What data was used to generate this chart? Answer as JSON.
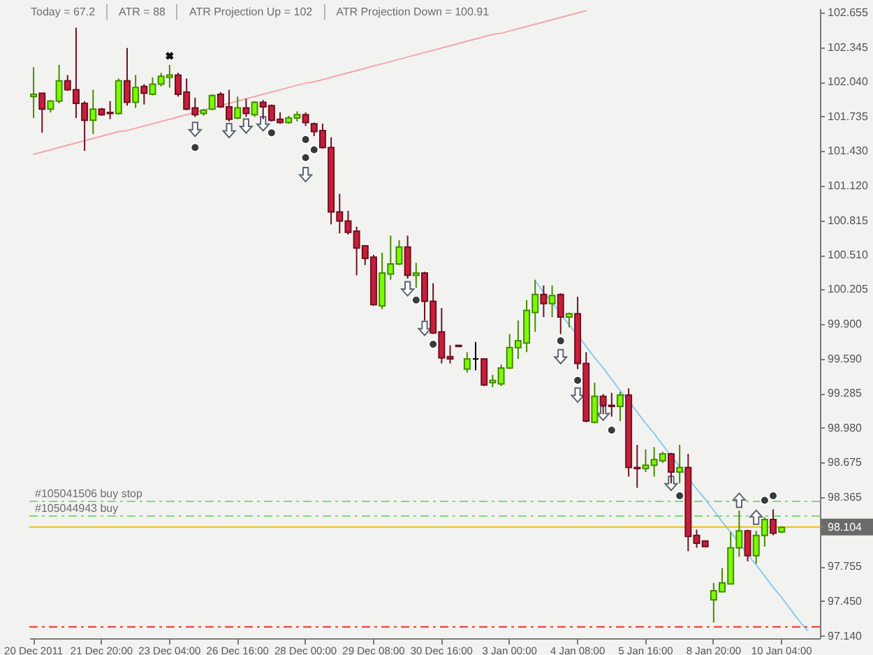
{
  "chart_data": {
    "type": "candlestick",
    "annotations": [
      "Today = 67.2",
      "ATR = 88",
      "ATR Projection Up = 102",
      "ATR Projection Down = 100.91"
    ],
    "categories": [
      "20 Dec 2011",
      null,
      null,
      null,
      null,
      null,
      null,
      null,
      "21 Dec 20:00",
      null,
      null,
      null,
      null,
      null,
      null,
      null,
      "23 Dec 04:00",
      null,
      null,
      null,
      null,
      null,
      null,
      null,
      "26 Dec 16:00",
      null,
      null,
      null,
      null,
      null,
      null,
      null,
      "28 Dec 00:00",
      null,
      null,
      null,
      null,
      null,
      null,
      null,
      "29 Dec 08:00",
      null,
      null,
      null,
      null,
      null,
      null,
      null,
      "30 Dec 16:00",
      null,
      null,
      null,
      null,
      null,
      null,
      null,
      "3 Jan 00:00",
      null,
      null,
      null,
      null,
      null,
      null,
      null,
      "4 Jan 08:00",
      null,
      null,
      null,
      null,
      null,
      null,
      null,
      "5 Jan 16:00",
      null,
      null,
      null,
      null,
      null,
      null,
      null,
      "8 Jan 20:00",
      null,
      null,
      null,
      null,
      null,
      null,
      null,
      "10 Jan 04:00",
      null,
      null,
      null,
      null
    ],
    "ohlc": [
      [
        101.91,
        102.17,
        101.72,
        101.93
      ],
      [
        101.94,
        101.94,
        101.59,
        101.8
      ],
      [
        101.8,
        101.88,
        101.77,
        101.87
      ],
      [
        101.87,
        102.19,
        101.85,
        102.05
      ],
      [
        102.05,
        102.1,
        101.96,
        101.97
      ],
      [
        101.97,
        102.52,
        101.72,
        101.85
      ],
      [
        101.85,
        101.87,
        101.43,
        101.7
      ],
      [
        101.7,
        101.97,
        101.58,
        101.8
      ],
      [
        101.8,
        101.81,
        101.74,
        101.75
      ],
      [
        101.77,
        101.87,
        101.71,
        101.76
      ],
      [
        101.76,
        102.07,
        101.75,
        102.05
      ],
      [
        102.05,
        102.34,
        101.83,
        101.86
      ],
      [
        101.86,
        102.1,
        101.81,
        101.99
      ],
      [
        102.0,
        102.02,
        101.84,
        101.94
      ],
      [
        101.93,
        102.08,
        101.92,
        102.02
      ],
      [
        102.02,
        102.12,
        102.0,
        102.09
      ],
      [
        102.08,
        102.19,
        101.99,
        102.1
      ],
      [
        102.1,
        102.12,
        101.91,
        101.93
      ],
      [
        101.95,
        102.07,
        101.79,
        101.8
      ],
      [
        101.81,
        101.9,
        101.73,
        101.75
      ],
      [
        101.76,
        101.8,
        101.74,
        101.79
      ],
      [
        101.8,
        101.93,
        101.79,
        101.92
      ],
      [
        101.93,
        101.95,
        101.81,
        101.82
      ],
      [
        101.82,
        101.97,
        101.69,
        101.71
      ],
      [
        101.72,
        101.91,
        101.71,
        101.81
      ],
      [
        101.81,
        101.89,
        101.73,
        101.76
      ],
      [
        101.75,
        101.87,
        101.73,
        101.86
      ],
      [
        101.86,
        101.88,
        101.71,
        101.82
      ],
      [
        101.83,
        101.84,
        101.69,
        101.7
      ],
      [
        101.71,
        101.77,
        101.67,
        101.68
      ],
      [
        101.68,
        101.74,
        101.67,
        101.72
      ],
      [
        101.72,
        101.78,
        101.69,
        101.75
      ],
      [
        101.75,
        101.77,
        101.65,
        101.68
      ],
      [
        101.67,
        101.68,
        101.56,
        101.6
      ],
      [
        101.61,
        101.67,
        101.45,
        101.46
      ],
      [
        101.46,
        101.55,
        100.78,
        100.89
      ],
      [
        100.89,
        101.05,
        100.7,
        100.81
      ],
      [
        100.81,
        100.9,
        100.69,
        100.71
      ],
      [
        100.72,
        100.76,
        100.33,
        100.57
      ],
      [
        100.59,
        100.59,
        100.42,
        100.48
      ],
      [
        100.49,
        100.51,
        100.06,
        100.07
      ],
      [
        100.06,
        100.53,
        100.03,
        100.35
      ],
      [
        100.34,
        100.68,
        100.29,
        100.43
      ],
      [
        100.43,
        100.64,
        100.42,
        100.58
      ],
      [
        100.58,
        100.68,
        100.3,
        100.33
      ],
      [
        100.33,
        100.44,
        100.22,
        100.35
      ],
      [
        100.35,
        100.36,
        99.93,
        100.1
      ],
      [
        100.1,
        100.26,
        99.81,
        99.82
      ],
      [
        99.83,
        100.04,
        99.55,
        99.6
      ],
      [
        99.61,
        99.71,
        99.55,
        99.59
      ],
      [
        99.71,
        99.71,
        99.7,
        99.7
      ],
      [
        99.5,
        99.65,
        99.47,
        99.59
      ],
      [
        99.59,
        99.74,
        99.49,
        99.59
      ],
      [
        99.59,
        99.59,
        99.35,
        99.36
      ],
      [
        99.38,
        99.45,
        99.34,
        99.4
      ],
      [
        99.37,
        99.54,
        99.35,
        99.51
      ],
      [
        99.51,
        99.81,
        99.5,
        99.69
      ],
      [
        99.69,
        99.93,
        99.59,
        99.75
      ],
      [
        99.73,
        100.11,
        99.65,
        100.02
      ],
      [
        100.0,
        100.29,
        99.83,
        100.16
      ],
      [
        100.16,
        100.24,
        99.96,
        100.08
      ],
      [
        100.08,
        100.24,
        99.96,
        100.15
      ],
      [
        100.16,
        100.17,
        99.81,
        99.96
      ],
      [
        99.96,
        100.0,
        99.87,
        99.99
      ],
      [
        99.99,
        100.14,
        99.5,
        99.55
      ],
      [
        99.55,
        99.65,
        99.03,
        99.04
      ],
      [
        99.03,
        99.38,
        99.02,
        99.26
      ],
      [
        99.26,
        99.28,
        99.1,
        99.18
      ],
      [
        99.18,
        99.29,
        99.08,
        99.17
      ],
      [
        99.17,
        99.3,
        99.04,
        99.27
      ],
      [
        99.27,
        99.33,
        98.55,
        98.63
      ],
      [
        98.63,
        98.83,
        98.45,
        98.62
      ],
      [
        98.62,
        98.79,
        98.59,
        98.65
      ],
      [
        98.65,
        98.81,
        98.55,
        98.7
      ],
      [
        98.69,
        98.77,
        98.67,
        98.75
      ],
      [
        98.75,
        98.76,
        98.49,
        98.59
      ],
      [
        98.59,
        98.83,
        98.49,
        98.63
      ],
      [
        98.63,
        98.75,
        97.89,
        98.02
      ],
      [
        98.03,
        98.08,
        97.92,
        97.96
      ],
      [
        97.98,
        97.98,
        97.93,
        97.93
      ],
      [
        97.46,
        97.61,
        97.26,
        97.54
      ],
      [
        97.53,
        97.74,
        97.53,
        97.61
      ],
      [
        97.6,
        98.06,
        97.6,
        97.92
      ],
      [
        97.92,
        98.25,
        97.84,
        98.07
      ],
      [
        98.07,
        98.08,
        97.8,
        97.85
      ],
      [
        97.85,
        98.07,
        97.78,
        98.03
      ],
      [
        98.03,
        98.19,
        97.93,
        98.17
      ],
      [
        98.17,
        98.26,
        98.03,
        98.05
      ],
      [
        98.06,
        98.11,
        98.05,
        98.1
      ],
      null,
      null,
      null,
      null
    ],
    "colors": [
      "#7cfc00",
      "#c81e3c",
      "#7cfc00",
      "#7cfc00",
      "#c81e3c",
      "#c81e3c",
      "#c81e3c",
      "#7cfc00",
      "#c81e3c",
      "#c81e3c",
      "#7cfc00",
      "#c81e3c",
      "#7cfc00",
      "#c81e3c",
      "#7cfc00",
      "#7cfc00",
      "#7cfc00",
      "#c81e3c",
      "#c81e3c",
      "#c81e3c",
      "#7cfc00",
      "#7cfc00",
      "#c81e3c",
      "#c81e3c",
      "#7cfc00",
      "#c81e3c",
      "#7cfc00",
      "#c81e3c",
      "#c81e3c",
      "#c81e3c",
      "#7cfc00",
      "#7cfc00",
      "#c81e3c",
      "#c81e3c",
      "#c81e3c",
      "#c81e3c",
      "#c81e3c",
      "#c81e3c",
      "#c81e3c",
      "#c81e3c",
      "#c81e3c",
      "#7cfc00",
      "#7cfc00",
      "#7cfc00",
      "#c81e3c",
      "#7cfc00",
      "#c81e3c",
      "#c81e3c",
      "#c81e3c",
      "#c81e3c",
      "#c81e3c",
      "#7cfc00",
      "#000000",
      "#c81e3c",
      "#7cfc00",
      "#7cfc00",
      "#7cfc00",
      "#7cfc00",
      "#7cfc00",
      "#7cfc00",
      "#c81e3c",
      "#7cfc00",
      "#c81e3c",
      "#7cfc00",
      "#c81e3c",
      "#c81e3c",
      "#7cfc00",
      "#c81e3c",
      "#c81e3c",
      "#7cfc00",
      "#c81e3c",
      "#c81e3c",
      "#7cfc00",
      "#7cfc00",
      "#7cfc00",
      "#c81e3c",
      "#7cfc00",
      "#c81e3c",
      "#c81e3c",
      "#c81e3c",
      "#7cfc00",
      "#7cfc00",
      "#7cfc00",
      "#7cfc00",
      "#c81e3c",
      "#7cfc00",
      "#7cfc00",
      "#c81e3c",
      "#7cfc00",
      null,
      null,
      null,
      null
    ],
    "ylim": [
      97.12,
      102.69
    ],
    "yticks": [
      102.655,
      102.345,
      {
        "value": 102.04,
        "label": "102.040"
      },
      101.735,
      {
        "value": 101.43,
        "label": "101.430"
      },
      {
        "value": 101.12,
        "label": "101.120"
      },
      100.815,
      {
        "value": 100.51,
        "label": "100.510"
      },
      100.205,
      {
        "value": 99.9,
        "label": "99.900"
      },
      {
        "value": 99.59,
        "label": "99.590"
      },
      99.285,
      {
        "value": 98.98,
        "label": "98.980"
      },
      98.675,
      98.365,
      98.104,
      97.755,
      {
        "value": 97.45,
        "label": "97.450"
      },
      {
        "value": 97.14,
        "label": "97.140"
      }
    ],
    "ref_lines": [
      {
        "axis": "y",
        "value": 98.33,
        "label": "#105041506 buy stop",
        "color": "#80d880",
        "line_style": "dashed"
      },
      {
        "axis": "y",
        "value": 98.2,
        "label": "#105044943 buy",
        "color": "#80d880",
        "line_style": "dashed"
      },
      {
        "axis": "y",
        "value": 98.104,
        "color": "#f0c000",
        "line_style": "solid"
      },
      {
        "axis": "y",
        "value": 97.22,
        "color": "#ff2a2a",
        "line_style": "dashed"
      }
    ],
    "series": [
      {
        "type": "line",
        "color": "#f4a6ae",
        "values": [
          101.4,
          101.42,
          101.44,
          101.46,
          101.48,
          101.5,
          101.52,
          101.54,
          101.56,
          101.58,
          101.6,
          101.61,
          101.63,
          101.65,
          101.67,
          101.69,
          101.71,
          101.73,
          101.75,
          101.77,
          101.79,
          101.81,
          101.83,
          101.85,
          101.87,
          101.89,
          101.91,
          101.93,
          101.95,
          101.97,
          101.99,
          102.01,
          102.03,
          102.04,
          102.06,
          102.08,
          102.1,
          102.12,
          102.14,
          102.16,
          102.18,
          102.2,
          102.22,
          102.24,
          102.26,
          102.28,
          102.3,
          102.32,
          102.34,
          102.36,
          102.38,
          102.4,
          102.42,
          102.44,
          102.46,
          102.47,
          102.49,
          102.51,
          102.53,
          102.55,
          102.57,
          102.59,
          102.61,
          102.63,
          102.65,
          102.67,
          null,
          null,
          null,
          null,
          null,
          null,
          null,
          null,
          null,
          null,
          null,
          null,
          null,
          null,
          null,
          null,
          null,
          null,
          null,
          null,
          null,
          null,
          null,
          null,
          null,
          null,
          null
        ]
      },
      {
        "type": "line",
        "color": "#8fc8ee",
        "values": [
          null,
          null,
          null,
          null,
          null,
          null,
          null,
          null,
          null,
          null,
          null,
          null,
          null,
          null,
          null,
          null,
          null,
          null,
          null,
          null,
          null,
          null,
          null,
          null,
          null,
          null,
          null,
          null,
          null,
          null,
          null,
          null,
          null,
          null,
          null,
          null,
          null,
          null,
          null,
          null,
          null,
          null,
          null,
          null,
          null,
          null,
          null,
          null,
          null,
          null,
          null,
          null,
          null,
          null,
          null,
          null,
          null,
          null,
          null,
          100.28,
          100.18,
          100.09,
          99.99,
          99.89,
          99.8,
          99.7,
          99.6,
          99.51,
          99.41,
          99.31,
          99.22,
          99.12,
          99.02,
          98.93,
          98.83,
          98.73,
          98.64,
          98.54,
          98.44,
          98.35,
          98.25,
          98.15,
          98.06,
          97.96,
          97.86,
          97.77,
          97.67,
          97.57,
          97.48,
          97.38,
          97.28,
          97.19,
          null
        ]
      },
      {
        "type": "scatter",
        "marker": "triangle",
        "color": "#5a6470",
        "values": [
          null,
          null,
          null,
          null,
          null,
          null,
          null,
          null,
          null,
          null,
          null,
          null,
          null,
          null,
          null,
          null,
          null,
          null,
          null,
          101.62,
          null,
          null,
          null,
          101.61,
          null,
          101.65,
          null,
          101.67,
          null,
          null,
          null,
          null,
          101.22,
          null,
          null,
          null,
          null,
          null,
          null,
          null,
          null,
          null,
          null,
          null,
          100.21,
          null,
          99.86,
          null,
          null,
          null,
          null,
          null,
          null,
          null,
          null,
          null,
          null,
          null,
          null,
          null,
          null,
          null,
          99.61,
          null,
          99.27,
          null,
          null,
          99.11,
          null,
          null,
          null,
          null,
          null,
          null,
          null,
          98.49,
          null,
          null,
          null,
          null,
          null,
          null,
          null,
          98.34,
          null,
          98.19,
          null,
          null,
          null,
          null,
          null,
          null,
          null
        ]
      },
      {
        "type": "scatter",
        "marker": "circle",
        "color": "#3a3a3a",
        "values": [
          null,
          null,
          null,
          null,
          null,
          null,
          null,
          null,
          null,
          null,
          null,
          null,
          null,
          null,
          null,
          null,
          null,
          null,
          null,
          101.46,
          null,
          null,
          null,
          null,
          null,
          null,
          null,
          null,
          101.59,
          null,
          null,
          null,
          101.53,
          101.44,
          null,
          null,
          null,
          null,
          null,
          null,
          null,
          null,
          null,
          null,
          null,
          100.11,
          null,
          99.72,
          null,
          null,
          null,
          null,
          null,
          null,
          null,
          null,
          null,
          null,
          null,
          null,
          null,
          null,
          99.75,
          null,
          99.4,
          null,
          null,
          null,
          98.96,
          null,
          null,
          null,
          null,
          null,
          null,
          null,
          98.38,
          null,
          null,
          null,
          null,
          null,
          null,
          null,
          null,
          null,
          98.34,
          98.38,
          null,
          null,
          null,
          null,
          null
        ]
      },
      {
        "type": "scatter",
        "marker": "circle",
        "color": "#3a3a3a",
        "values": [
          null,
          null,
          null,
          null,
          null,
          null,
          null,
          null,
          null,
          null,
          null,
          null,
          null,
          null,
          null,
          null,
          null,
          null,
          null,
          null,
          null,
          null,
          null,
          null,
          null,
          null,
          null,
          null,
          null,
          null,
          null,
          null,
          101.37,
          null,
          null,
          null,
          null,
          null,
          null,
          null,
          null,
          null,
          null,
          null,
          null,
          null,
          null,
          null,
          null,
          null,
          null,
          null,
          null,
          null,
          null,
          null,
          null,
          null,
          null,
          null,
          null,
          null,
          null,
          null,
          null,
          null,
          null,
          null,
          null,
          null,
          null,
          null,
          null,
          null,
          null,
          null,
          null,
          null,
          null,
          null,
          null,
          null,
          null,
          null,
          null,
          null,
          null,
          null,
          null,
          null,
          null,
          null,
          null
        ]
      },
      {
        "type": "scatter",
        "marker": "cross",
        "color": "#111111",
        "values": [
          null,
          null,
          null,
          null,
          null,
          null,
          null,
          null,
          null,
          null,
          null,
          null,
          null,
          null,
          null,
          null,
          102.27,
          null,
          null,
          null,
          null,
          null,
          null,
          null,
          null,
          null,
          null,
          null,
          null,
          null,
          null,
          null,
          null,
          null,
          null,
          null,
          null,
          null,
          null,
          null,
          null,
          null,
          null,
          null,
          null,
          null,
          null,
          null,
          null,
          null,
          null,
          null,
          null,
          null,
          null,
          null,
          null,
          null,
          null,
          null,
          null,
          null,
          null,
          null,
          null,
          null,
          null,
          null,
          null,
          null,
          null,
          null,
          null,
          null,
          null,
          null,
          null,
          null,
          null,
          null,
          null,
          null,
          null,
          null,
          null,
          null,
          null,
          null,
          null,
          null,
          null,
          null,
          null
        ]
      }
    ]
  }
}
